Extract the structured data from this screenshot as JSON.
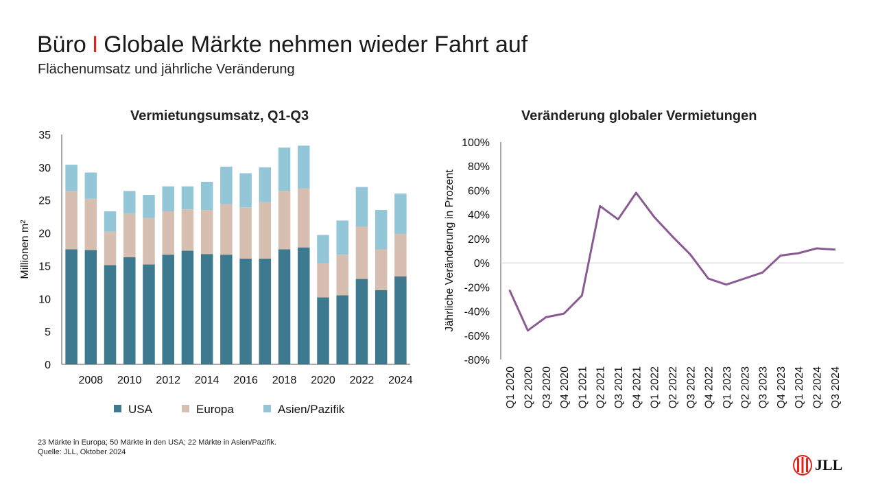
{
  "header": {
    "title_part1": "Büro",
    "title_sep": "I",
    "title_part2": "Globale Märkte nehmen wieder Fahrt auf",
    "subtitle": "Flächenumsatz und jährliche Veränderung"
  },
  "chart_data": [
    {
      "type": "bar",
      "stacked": true,
      "title": "Vermietungsumsatz, Q1-Q3",
      "ylabel": "Millionen m²",
      "xlabel": "",
      "ylim": [
        0,
        35
      ],
      "yticks": [
        0,
        5,
        10,
        15,
        20,
        25,
        30,
        35
      ],
      "categories": [
        "2007",
        "2008",
        "2009",
        "2010",
        "2011",
        "2012",
        "2013",
        "2014",
        "2015",
        "2016",
        "2017",
        "2018",
        "2019",
        "2020",
        "2021",
        "2022",
        "2023",
        "2024"
      ],
      "xtick_labels": [
        "2008",
        "2010",
        "2012",
        "2014",
        "2016",
        "2018",
        "2020",
        "2022",
        "2024"
      ],
      "series": [
        {
          "name": "USA",
          "color": "#3d7a8f",
          "values": [
            17.5,
            17.4,
            15.1,
            16.3,
            15.2,
            16.7,
            17.3,
            16.8,
            16.7,
            16.1,
            16.1,
            17.5,
            17.8,
            10.2,
            10.5,
            13.0,
            11.3,
            13.4
          ]
        },
        {
          "name": "Europa",
          "color": "#d6bfb0",
          "values": [
            8.9,
            7.8,
            5.1,
            6.7,
            7.1,
            6.6,
            6.3,
            6.7,
            7.7,
            7.8,
            8.6,
            8.9,
            9.0,
            5.2,
            6.2,
            8.0,
            6.2,
            6.5
          ]
        },
        {
          "name": "Asien/Pazifik",
          "color": "#93c6d6",
          "values": [
            4.0,
            4.0,
            3.1,
            3.4,
            3.5,
            3.8,
            3.5,
            4.3,
            5.7,
            5.2,
            5.3,
            6.6,
            6.5,
            4.3,
            5.2,
            6.0,
            6.0,
            6.1
          ]
        }
      ],
      "legend_position": "bottom"
    },
    {
      "type": "line",
      "title": "Veränderung globaler Vermietungen",
      "ylabel": "Jährliche Veränderung in Prozent",
      "xlabel": "",
      "ylim": [
        -80,
        100
      ],
      "yticks": [
        -80,
        -60,
        -40,
        -20,
        0,
        20,
        40,
        60,
        80,
        100
      ],
      "ytick_labels": [
        "-80%",
        "-60%",
        "-40%",
        "-20%",
        "0%",
        "20%",
        "40%",
        "60%",
        "80%",
        "100%"
      ],
      "x": [
        "Q1 2020",
        "Q2 2020",
        "Q3 2020",
        "Q4 2020",
        "Q1 2021",
        "Q2 2021",
        "Q3 2021",
        "Q4 2021",
        "Q1 2022",
        "Q2 2022",
        "Q3 2022",
        "Q4 2022",
        "Q1 2023",
        "Q2 2023",
        "Q3 2023",
        "Q4 2023",
        "Q1 2024",
        "Q2 2024",
        "Q3 2024"
      ],
      "series": [
        {
          "color": "#8a5a93",
          "values": [
            -23,
            -56,
            -45,
            -42,
            -27,
            47,
            36,
            58,
            38,
            22,
            7,
            -13,
            -18,
            -13,
            -8,
            6,
            8,
            12,
            11
          ]
        }
      ]
    }
  ],
  "footnotes": {
    "line1": "23 Märkte in Europa; 50 Märkte in den USA;  22 Märkte in Asien/Pazifik.",
    "line2": "Quelle: JLL, Oktober 2024"
  },
  "logo": {
    "text": "JLL",
    "color": "#e2231a"
  }
}
